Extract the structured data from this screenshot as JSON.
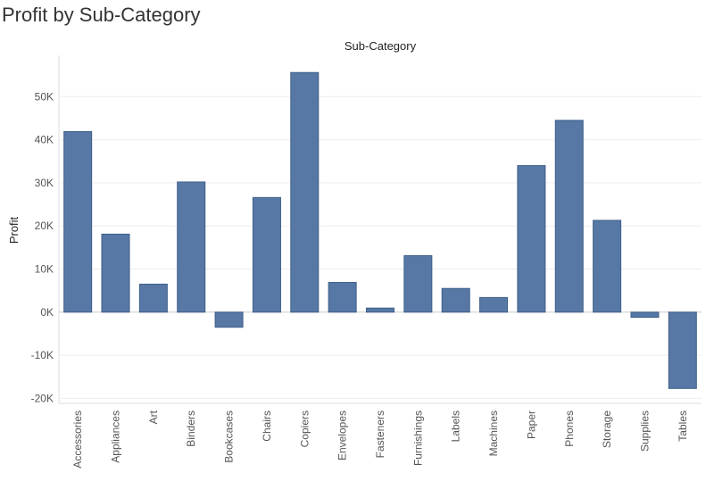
{
  "title": "Profit by Sub-Category",
  "colors": {
    "bar": "#5778a4",
    "bar_stroke": "#3f5f8a",
    "grid": "#eeeeee",
    "zero": "#cccccc"
  },
  "chart_data": {
    "type": "bar",
    "title": "Profit by Sub-Category",
    "xlabel": "Sub-Category",
    "ylabel": "Profit",
    "ylim": [
      -22000,
      60000
    ],
    "yticks": [
      -20000,
      -10000,
      0,
      10000,
      20000,
      30000,
      40000,
      50000
    ],
    "ytick_labels": [
      "-20K",
      "-10K",
      "0K",
      "10K",
      "20K",
      "30K",
      "40K",
      "50K"
    ],
    "grid": true,
    "categories": [
      "Accessories",
      "Appliances",
      "Art",
      "Binders",
      "Bookcases",
      "Chairs",
      "Copiers",
      "Envelopes",
      "Fasteners",
      "Furnishings",
      "Labels",
      "Machines",
      "Paper",
      "Phones",
      "Storage",
      "Supplies",
      "Tables"
    ],
    "values": [
      41900,
      18100,
      6500,
      30200,
      -3500,
      26600,
      55600,
      6900,
      950,
      13100,
      5500,
      3400,
      34000,
      44500,
      21300,
      -1200,
      -17700
    ]
  }
}
